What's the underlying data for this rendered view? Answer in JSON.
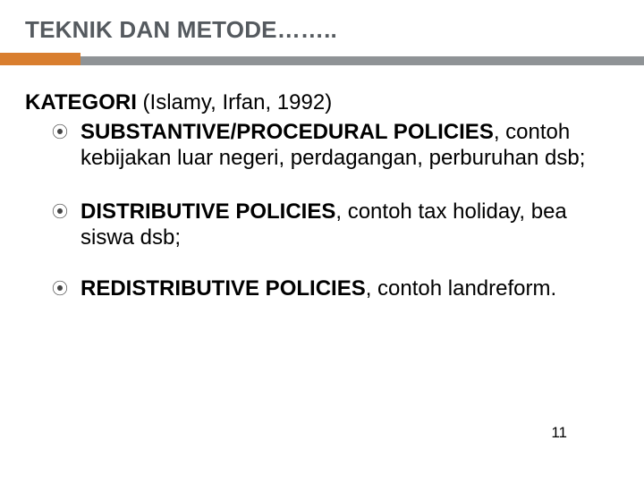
{
  "title": "TEKNIK DAN METODE……..",
  "heading_bold": "KATEGORI",
  "heading_rest": "  (Islamy, Irfan, 1992)",
  "bullets": [
    {
      "bold": "SUBSTANTIVE/PROCEDURAL POLICIES",
      "rest": ", contoh kebijakan luar negeri, perdagangan, perburuhan dsb;"
    },
    {
      "bold": "DISTRIBUTIVE POLICIES",
      "rest": ", contoh tax holiday, bea siswa dsb;"
    },
    {
      "bold": "REDISTRIBUTIVE POLICIES",
      "rest": ", contoh landreform."
    }
  ],
  "page_number": "11",
  "colors": {
    "title_color": "#555a5f",
    "bar_gray": "#8f9396",
    "bar_orange": "#d97e2e",
    "text": "#000000",
    "background": "#ffffff"
  }
}
